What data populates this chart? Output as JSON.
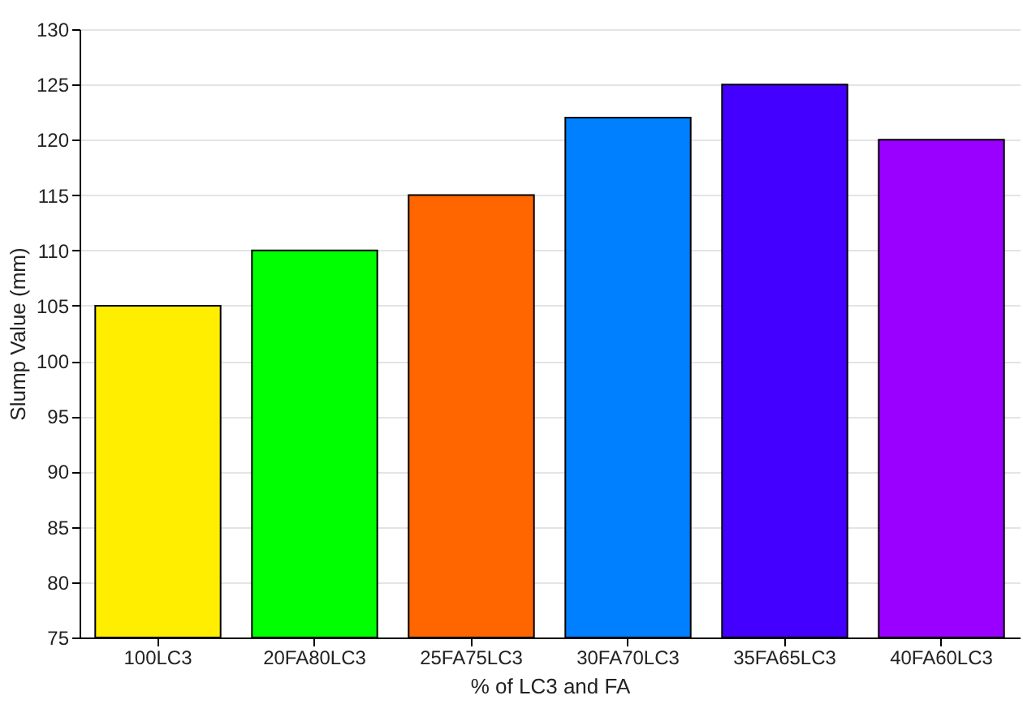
{
  "chart_data": {
    "type": "bar",
    "xlabel": "% of LC3 and FA",
    "ylabel": "Slump Value (mm)",
    "categories": [
      "100LC3",
      "20FA80LC3",
      "25FA75LC3",
      "30FA70LC3",
      "35FA65LC3",
      "40FA60LC3"
    ],
    "values": [
      105,
      110,
      115,
      122,
      125,
      120
    ],
    "colors": [
      "#ffee00",
      "#00ff00",
      "#ff6600",
      "#0080ff",
      "#4400ff",
      "#9900ff"
    ],
    "ylim": [
      75,
      130
    ],
    "yticks": [
      75,
      80,
      85,
      90,
      95,
      100,
      105,
      110,
      115,
      120,
      125,
      130
    ],
    "grid": "y"
  }
}
